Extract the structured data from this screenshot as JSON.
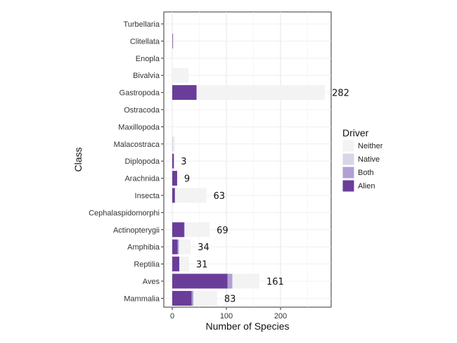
{
  "chart_data": {
    "type": "bar",
    "orientation": "horizontal",
    "stacked": true,
    "xlabel": "Number of Species",
    "ylabel": "Class",
    "xlim": [
      0,
      285
    ],
    "xticks": [
      0,
      100,
      200
    ],
    "grid": true,
    "legend": {
      "title": "Driver",
      "position": "right"
    },
    "categories": [
      "Turbellaria",
      "Clitellata",
      "Enopla",
      "Bivalvia",
      "Gastropoda",
      "Ostracoda",
      "Maxillopoda",
      "Malacostraca",
      "Diplopoda",
      "Arachnida",
      "Insecta",
      "Cephalaspidomorphi",
      "Actinopterygii",
      "Amphibia",
      "Reptilia",
      "Aves",
      "Mammalia"
    ],
    "series": [
      {
        "name": "Alien",
        "color": "#6a3d9a",
        "values": [
          0,
          1,
          0,
          0,
          45,
          0,
          0,
          0,
          3,
          9,
          5,
          0,
          22,
          10,
          13,
          102,
          36
        ]
      },
      {
        "name": "Both",
        "color": "#b0a0d6",
        "values": [
          0,
          0,
          0,
          0,
          0,
          0,
          0,
          0,
          0,
          0,
          0,
          0,
          1,
          2,
          0,
          9,
          3
        ]
      },
      {
        "name": "Native",
        "color": "#dad4e8",
        "values": [
          0,
          1,
          0,
          0,
          0,
          0,
          0,
          2,
          0,
          0,
          0,
          0,
          0,
          1,
          0,
          0,
          0
        ]
      },
      {
        "name": "Neither",
        "color": "#f3f3f3",
        "values": [
          0,
          0,
          1,
          30,
          237,
          0,
          0,
          3,
          0,
          0,
          58,
          0,
          46,
          21,
          18,
          50,
          44
        ]
      }
    ],
    "totals_shown": [
      null,
      null,
      null,
      null,
      282,
      null,
      null,
      null,
      3,
      9,
      63,
      null,
      69,
      34,
      31,
      161,
      83
    ],
    "legend_order": [
      "Neither",
      "Native",
      "Both",
      "Alien"
    ]
  }
}
